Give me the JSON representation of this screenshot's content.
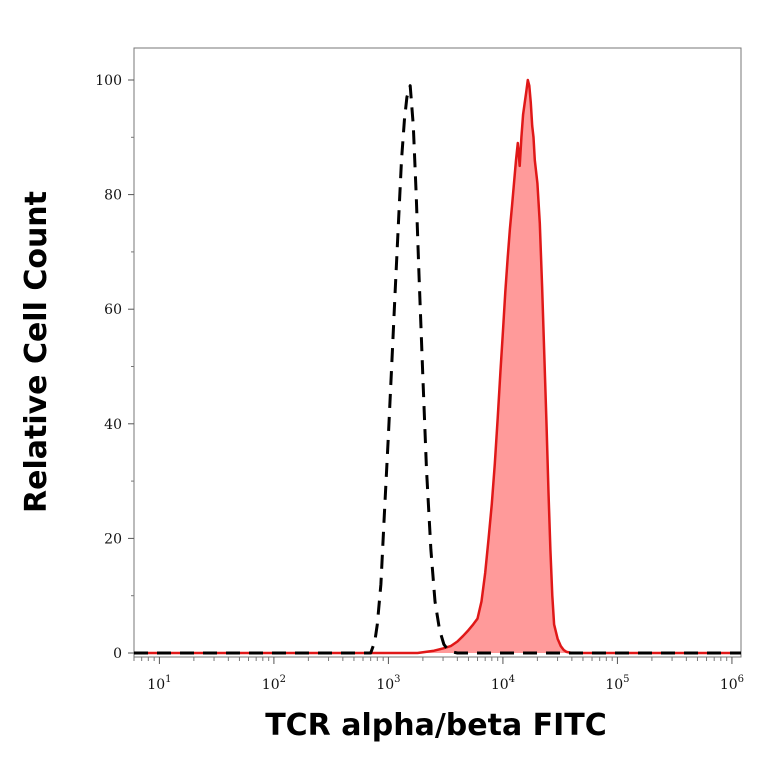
{
  "chart_data": {
    "type": "area",
    "title": "",
    "xlabel": "TCR alpha/beta FITC",
    "ylabel": "Relative Cell Count",
    "xscale": "log",
    "xlim": [
      6,
      1200000
    ],
    "ylim": [
      0,
      100
    ],
    "grid": false,
    "legend": "none",
    "x_ticks": [
      {
        "base": "10",
        "exp": "1",
        "value": 10
      },
      {
        "base": "10",
        "exp": "2",
        "value": 100
      },
      {
        "base": "10",
        "exp": "3",
        "value": 1000
      },
      {
        "base": "10",
        "exp": "4",
        "value": 10000
      },
      {
        "base": "10",
        "exp": "5",
        "value": 100000
      },
      {
        "base": "10",
        "exp": "6",
        "value": 1000000
      }
    ],
    "y_ticks": [
      {
        "label": "0",
        "value": 0
      },
      {
        "label": "20",
        "value": 20
      },
      {
        "label": "40",
        "value": 40
      },
      {
        "label": "60",
        "value": 60
      },
      {
        "label": "80",
        "value": 80
      },
      {
        "label": "100",
        "value": 100
      }
    ],
    "series": [
      {
        "style": "dashed-outline",
        "color": "#000000",
        "x": [
          6,
          700,
          760,
          800,
          860,
          920,
          1000,
          1080,
          1150,
          1230,
          1300,
          1380,
          1450,
          1550,
          1650,
          1750,
          1850,
          2000,
          2150,
          2350,
          2550,
          2800,
          3050,
          3300,
          3600,
          4000,
          1200000
        ],
        "y": [
          0,
          0,
          2,
          5,
          12,
          24,
          38,
          52,
          64,
          76,
          86,
          93,
          97,
          99,
          92,
          80,
          66,
          48,
          32,
          18,
          9,
          4,
          1.5,
          0.6,
          0.2,
          0,
          0
        ]
      },
      {
        "style": "filled",
        "color": "#e01818",
        "fill": "#ff9a9a",
        "x": [
          6,
          1800,
          2500,
          3000,
          3500,
          4000,
          4500,
          5000,
          5500,
          6000,
          6500,
          7000,
          7500,
          8000,
          8500,
          9000,
          9500,
          10000,
          10500,
          11000,
          11500,
          12000,
          12500,
          13000,
          13500,
          14000,
          14500,
          15000,
          15500,
          16000,
          16500,
          17000,
          17500,
          18000,
          18500,
          19000,
          20000,
          21000,
          22000,
          23000,
          24000,
          25000,
          26000,
          27000,
          28000,
          30000,
          32000,
          34000,
          36000,
          40000,
          1200000
        ],
        "y": [
          0,
          0,
          0.4,
          0.8,
          1.2,
          2,
          3,
          4,
          5,
          6,
          9,
          14,
          20,
          26,
          33,
          41,
          49,
          56,
          63,
          69,
          74,
          78,
          82,
          86,
          89,
          85,
          90,
          94,
          96,
          98,
          100,
          99,
          96,
          92,
          90,
          86,
          82,
          75,
          64,
          52,
          40,
          28,
          18,
          10,
          5,
          2.5,
          1.2,
          0.5,
          0.2,
          0,
          0
        ]
      }
    ]
  }
}
